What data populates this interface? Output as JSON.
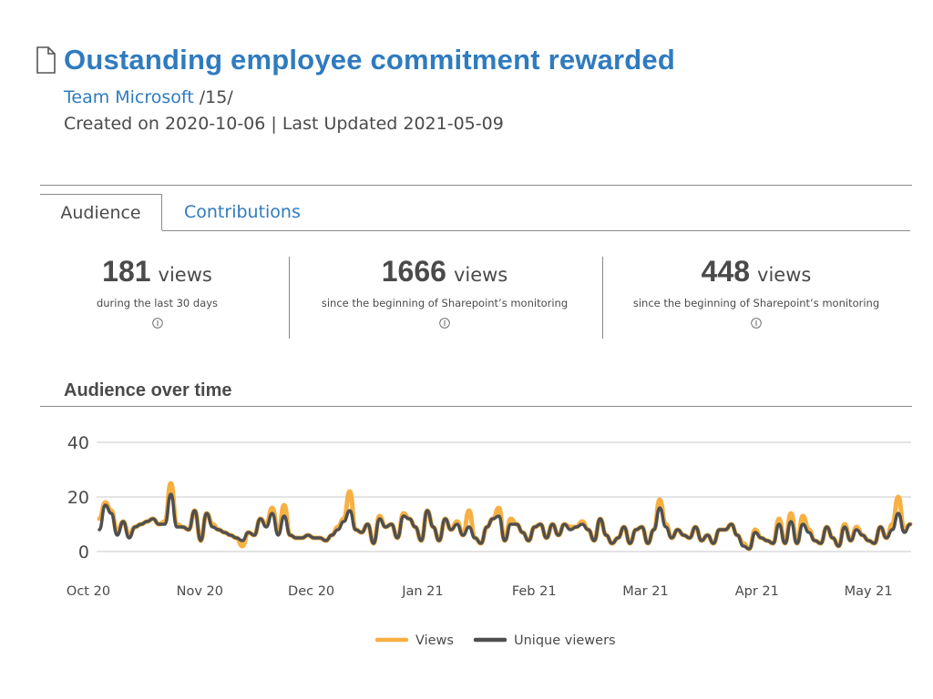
{
  "header": {
    "title": "Oustanding employee commitment rewarded",
    "team_link": "Team Microsoft",
    "team_suffix": " /15/",
    "dates": "Created on 2020-10-06 | Last Updated 2021-05-09",
    "icon": "document-icon"
  },
  "tabs": [
    {
      "label": "Audience",
      "active": true
    },
    {
      "label": "Contributions",
      "active": false
    }
  ],
  "stats": [
    {
      "value": "181",
      "unit": "views",
      "desc": "during the last 30 days"
    },
    {
      "value": "1666",
      "unit": "views",
      "desc": "since the beginning of Sharepoint’s monitoring"
    },
    {
      "value": "448",
      "unit": "views",
      "desc": "since the beginning of Sharepoint’s monitoring"
    }
  ],
  "section": {
    "title": "Audience over time"
  },
  "colors": {
    "accent": "#2f7bbf",
    "views": "#f7b042",
    "unique": "#4f4f4f",
    "text": "#4a4a4a"
  },
  "chart_data": {
    "type": "line",
    "ylim": [
      0,
      40
    ],
    "yticks": [
      0,
      20,
      40
    ],
    "xticks": [
      "Oct 20",
      "Nov 20",
      "Dec 20",
      "Jan 21",
      "Feb 21",
      "Mar 21",
      "Apr 21",
      "May 21"
    ],
    "legend_position": "bottom",
    "grid": true,
    "series": [
      {
        "name": "Views",
        "values": [
          12,
          18,
          15,
          7,
          11,
          6,
          9,
          10,
          11,
          12,
          10,
          11,
          25,
          10,
          9,
          8,
          15,
          4,
          14,
          10,
          8,
          7,
          6,
          5,
          2,
          7,
          6,
          12,
          10,
          16,
          7,
          17,
          6,
          5,
          5,
          6,
          5,
          5,
          4,
          6,
          9,
          12,
          22,
          8,
          7,
          10,
          3,
          13,
          9,
          10,
          5,
          14,
          12,
          9,
          4,
          15,
          9,
          4,
          12,
          8,
          11,
          6,
          15,
          5,
          3,
          9,
          12,
          16,
          4,
          12,
          10,
          7,
          4,
          9,
          10,
          5,
          10,
          6,
          10,
          9,
          9,
          11,
          8,
          4,
          12,
          6,
          3,
          5,
          9,
          3,
          8,
          9,
          3,
          8,
          19,
          10,
          5,
          8,
          6,
          5,
          9,
          4,
          6,
          3,
          8,
          8,
          10,
          6,
          3,
          1,
          8,
          5,
          4,
          3,
          12,
          3,
          14,
          3,
          13,
          8,
          4,
          3,
          9,
          5,
          2,
          10,
          4,
          9,
          6,
          4,
          3,
          9,
          5,
          10,
          20,
          8,
          10
        ],
        "color": "#f7b042"
      },
      {
        "name": "Unique viewers",
        "values": [
          8,
          17,
          14,
          6,
          11,
          5,
          9,
          10,
          11,
          12,
          10,
          10,
          21,
          9,
          9,
          8,
          15,
          4,
          14,
          9,
          8,
          7,
          6,
          5,
          4,
          7,
          6,
          12,
          9,
          14,
          6,
          13,
          6,
          5,
          5,
          6,
          5,
          5,
          4,
          6,
          8,
          11,
          15,
          8,
          7,
          10,
          3,
          12,
          9,
          10,
          5,
          13,
          12,
          9,
          4,
          15,
          9,
          4,
          12,
          8,
          10,
          6,
          9,
          5,
          3,
          9,
          12,
          13,
          4,
          10,
          10,
          7,
          4,
          9,
          10,
          5,
          10,
          6,
          10,
          8,
          9,
          10,
          8,
          4,
          12,
          6,
          3,
          5,
          9,
          3,
          8,
          9,
          3,
          8,
          16,
          9,
          5,
          8,
          6,
          5,
          9,
          4,
          6,
          3,
          8,
          8,
          10,
          6,
          2,
          1,
          7,
          5,
          4,
          3,
          10,
          3,
          11,
          3,
          10,
          7,
          4,
          3,
          9,
          5,
          2,
          9,
          4,
          8,
          6,
          4,
          3,
          9,
          5,
          8,
          14,
          7,
          10
        ],
        "color": "#4f4f4f"
      }
    ]
  }
}
